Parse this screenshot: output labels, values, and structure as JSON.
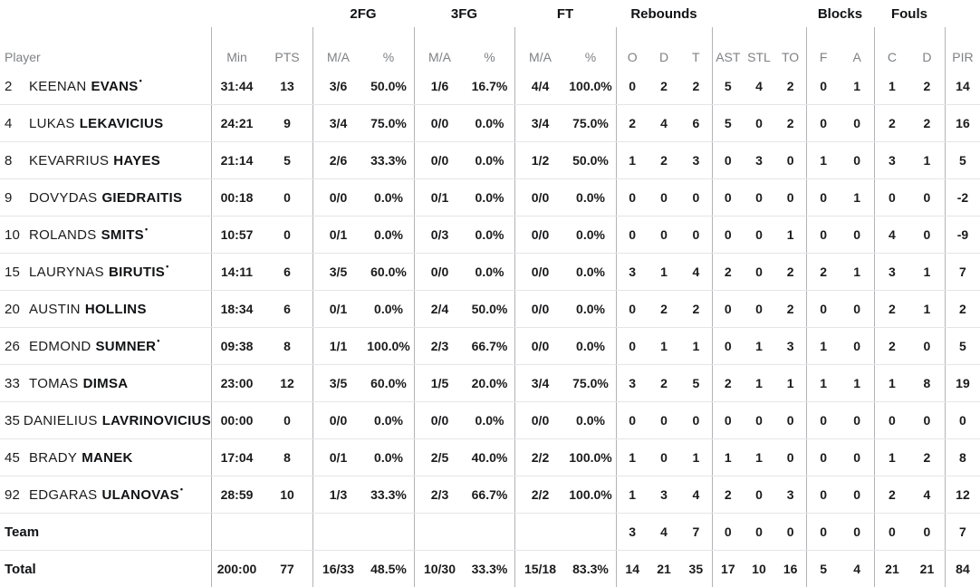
{
  "table": {
    "starter_mark": "•",
    "group_headers": {
      "fg2": "2FG",
      "fg3": "3FG",
      "ft": "FT",
      "rebounds": "Rebounds",
      "blocks": "Blocks",
      "fouls": "Fouls"
    },
    "columns": {
      "player": "Player",
      "min": "Min",
      "pts": "PTS",
      "ma": "M/A",
      "pct": "%",
      "o": "O",
      "d": "D",
      "t": "T",
      "ast": "AST",
      "stl": "STL",
      "to": "TO",
      "f": "F",
      "a": "A",
      "c": "C",
      "d2": "D",
      "pir": "PIR"
    },
    "rows": [
      {
        "num": "2",
        "first": "KEENAN",
        "last": "EVANS",
        "starter": true,
        "min": "31:44",
        "pts": "13",
        "fg2_ma": "3/6",
        "fg2_pct": "50.0%",
        "fg3_ma": "1/6",
        "fg3_pct": "16.7%",
        "ft_ma": "4/4",
        "ft_pct": "100.0%",
        "reb_o": "0",
        "reb_d": "2",
        "reb_t": "2",
        "ast": "5",
        "stl": "4",
        "to": "2",
        "blk_f": "0",
        "blk_a": "1",
        "foul_c": "1",
        "foul_d": "2",
        "pir": "14"
      },
      {
        "num": "4",
        "first": "LUKAS",
        "last": "LEKAVICIUS",
        "starter": false,
        "min": "24:21",
        "pts": "9",
        "fg2_ma": "3/4",
        "fg2_pct": "75.0%",
        "fg3_ma": "0/0",
        "fg3_pct": "0.0%",
        "ft_ma": "3/4",
        "ft_pct": "75.0%",
        "reb_o": "2",
        "reb_d": "4",
        "reb_t": "6",
        "ast": "5",
        "stl": "0",
        "to": "2",
        "blk_f": "0",
        "blk_a": "0",
        "foul_c": "2",
        "foul_d": "2",
        "pir": "16"
      },
      {
        "num": "8",
        "first": "KEVARRIUS",
        "last": "HAYES",
        "starter": false,
        "min": "21:14",
        "pts": "5",
        "fg2_ma": "2/6",
        "fg2_pct": "33.3%",
        "fg3_ma": "0/0",
        "fg3_pct": "0.0%",
        "ft_ma": "1/2",
        "ft_pct": "50.0%",
        "reb_o": "1",
        "reb_d": "2",
        "reb_t": "3",
        "ast": "0",
        "stl": "3",
        "to": "0",
        "blk_f": "1",
        "blk_a": "0",
        "foul_c": "3",
        "foul_d": "1",
        "pir": "5"
      },
      {
        "num": "9",
        "first": "DOVYDAS",
        "last": "GIEDRAITIS",
        "starter": false,
        "min": "00:18",
        "pts": "0",
        "fg2_ma": "0/0",
        "fg2_pct": "0.0%",
        "fg3_ma": "0/1",
        "fg3_pct": "0.0%",
        "ft_ma": "0/0",
        "ft_pct": "0.0%",
        "reb_o": "0",
        "reb_d": "0",
        "reb_t": "0",
        "ast": "0",
        "stl": "0",
        "to": "0",
        "blk_f": "0",
        "blk_a": "1",
        "foul_c": "0",
        "foul_d": "0",
        "pir": "-2"
      },
      {
        "num": "10",
        "first": "ROLANDS",
        "last": "SMITS",
        "starter": true,
        "min": "10:57",
        "pts": "0",
        "fg2_ma": "0/1",
        "fg2_pct": "0.0%",
        "fg3_ma": "0/3",
        "fg3_pct": "0.0%",
        "ft_ma": "0/0",
        "ft_pct": "0.0%",
        "reb_o": "0",
        "reb_d": "0",
        "reb_t": "0",
        "ast": "0",
        "stl": "0",
        "to": "1",
        "blk_f": "0",
        "blk_a": "0",
        "foul_c": "4",
        "foul_d": "0",
        "pir": "-9"
      },
      {
        "num": "15",
        "first": "LAURYNAS",
        "last": "BIRUTIS",
        "starter": true,
        "min": "14:11",
        "pts": "6",
        "fg2_ma": "3/5",
        "fg2_pct": "60.0%",
        "fg3_ma": "0/0",
        "fg3_pct": "0.0%",
        "ft_ma": "0/0",
        "ft_pct": "0.0%",
        "reb_o": "3",
        "reb_d": "1",
        "reb_t": "4",
        "ast": "2",
        "stl": "0",
        "to": "2",
        "blk_f": "2",
        "blk_a": "1",
        "foul_c": "3",
        "foul_d": "1",
        "pir": "7"
      },
      {
        "num": "20",
        "first": "AUSTIN",
        "last": "HOLLINS",
        "starter": false,
        "min": "18:34",
        "pts": "6",
        "fg2_ma": "0/1",
        "fg2_pct": "0.0%",
        "fg3_ma": "2/4",
        "fg3_pct": "50.0%",
        "ft_ma": "0/0",
        "ft_pct": "0.0%",
        "reb_o": "0",
        "reb_d": "2",
        "reb_t": "2",
        "ast": "0",
        "stl": "0",
        "to": "2",
        "blk_f": "0",
        "blk_a": "0",
        "foul_c": "2",
        "foul_d": "1",
        "pir": "2"
      },
      {
        "num": "26",
        "first": "EDMOND",
        "last": "SUMNER",
        "starter": true,
        "min": "09:38",
        "pts": "8",
        "fg2_ma": "1/1",
        "fg2_pct": "100.0%",
        "fg3_ma": "2/3",
        "fg3_pct": "66.7%",
        "ft_ma": "0/0",
        "ft_pct": "0.0%",
        "reb_o": "0",
        "reb_d": "1",
        "reb_t": "1",
        "ast": "0",
        "stl": "1",
        "to": "3",
        "blk_f": "1",
        "blk_a": "0",
        "foul_c": "2",
        "foul_d": "0",
        "pir": "5"
      },
      {
        "num": "33",
        "first": "TOMAS",
        "last": "DIMSA",
        "starter": false,
        "min": "23:00",
        "pts": "12",
        "fg2_ma": "3/5",
        "fg2_pct": "60.0%",
        "fg3_ma": "1/5",
        "fg3_pct": "20.0%",
        "ft_ma": "3/4",
        "ft_pct": "75.0%",
        "reb_o": "3",
        "reb_d": "2",
        "reb_t": "5",
        "ast": "2",
        "stl": "1",
        "to": "1",
        "blk_f": "1",
        "blk_a": "1",
        "foul_c": "1",
        "foul_d": "8",
        "pir": "19"
      },
      {
        "num": "35",
        "first": "DANIELIUS",
        "last": "LAVRINOVICIUS",
        "starter": false,
        "min": "00:00",
        "pts": "0",
        "fg2_ma": "0/0",
        "fg2_pct": "0.0%",
        "fg3_ma": "0/0",
        "fg3_pct": "0.0%",
        "ft_ma": "0/0",
        "ft_pct": "0.0%",
        "reb_o": "0",
        "reb_d": "0",
        "reb_t": "0",
        "ast": "0",
        "stl": "0",
        "to": "0",
        "blk_f": "0",
        "blk_a": "0",
        "foul_c": "0",
        "foul_d": "0",
        "pir": "0"
      },
      {
        "num": "45",
        "first": "BRADY",
        "last": "MANEK",
        "starter": false,
        "min": "17:04",
        "pts": "8",
        "fg2_ma": "0/1",
        "fg2_pct": "0.0%",
        "fg3_ma": "2/5",
        "fg3_pct": "40.0%",
        "ft_ma": "2/2",
        "ft_pct": "100.0%",
        "reb_o": "1",
        "reb_d": "0",
        "reb_t": "1",
        "ast": "1",
        "stl": "1",
        "to": "0",
        "blk_f": "0",
        "blk_a": "0",
        "foul_c": "1",
        "foul_d": "2",
        "pir": "8"
      },
      {
        "num": "92",
        "first": "EDGARAS",
        "last": "ULANOVAS",
        "starter": true,
        "min": "28:59",
        "pts": "10",
        "fg2_ma": "1/3",
        "fg2_pct": "33.3%",
        "fg3_ma": "2/3",
        "fg3_pct": "66.7%",
        "ft_ma": "2/2",
        "ft_pct": "100.0%",
        "reb_o": "1",
        "reb_d": "3",
        "reb_t": "4",
        "ast": "2",
        "stl": "0",
        "to": "3",
        "blk_f": "0",
        "blk_a": "0",
        "foul_c": "2",
        "foul_d": "4",
        "pir": "12"
      }
    ],
    "team_row": {
      "label": "Team",
      "min": "",
      "pts": "",
      "fg2_ma": "",
      "fg2_pct": "",
      "fg3_ma": "",
      "fg3_pct": "",
      "ft_ma": "",
      "ft_pct": "",
      "reb_o": "3",
      "reb_d": "4",
      "reb_t": "7",
      "ast": "0",
      "stl": "0",
      "to": "0",
      "blk_f": "0",
      "blk_a": "0",
      "foul_c": "0",
      "foul_d": "0",
      "pir": "7"
    },
    "total_row": {
      "label": "Total",
      "min": "200:00",
      "pts": "77",
      "fg2_ma": "16/33",
      "fg2_pct": "48.5%",
      "fg3_ma": "10/30",
      "fg3_pct": "33.3%",
      "ft_ma": "15/18",
      "ft_pct": "83.3%",
      "reb_o": "14",
      "reb_d": "21",
      "reb_t": "35",
      "ast": "17",
      "stl": "10",
      "to": "16",
      "blk_f": "5",
      "blk_a": "4",
      "foul_c": "21",
      "foul_d": "21",
      "pir": "84"
    },
    "colors": {
      "text": "#1b1b1d",
      "muted_header_text": "#7f8184",
      "vertical_divider": "#b3b3b7",
      "horizontal_divider": "#e5e5e7",
      "background": "#ffffff"
    }
  }
}
